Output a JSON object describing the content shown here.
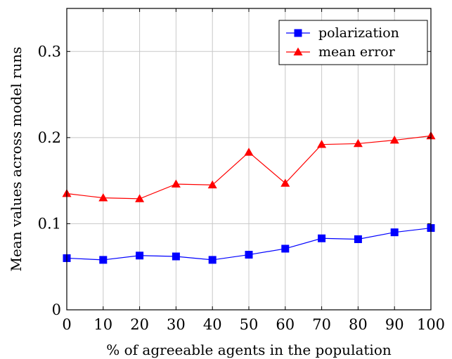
{
  "chart_data": {
    "type": "line",
    "title": "",
    "xlabel": "% of agreeable agents in the population",
    "ylabel": "Mean values across model runs",
    "x": [
      0,
      10,
      20,
      30,
      40,
      50,
      60,
      70,
      80,
      90,
      100
    ],
    "xlim": [
      0,
      100
    ],
    "ylim": [
      0,
      0.35
    ],
    "xticks": [
      0,
      10,
      20,
      30,
      40,
      50,
      60,
      70,
      80,
      90,
      100
    ],
    "xtick_labels": [
      "0",
      "10",
      "20",
      "30",
      "40",
      "50",
      "60",
      "70",
      "80",
      "90",
      "100"
    ],
    "yticks": [
      0,
      0.1,
      0.2,
      0.3
    ],
    "ytick_labels": [
      "0",
      "0.1",
      "0.2",
      "0.3"
    ],
    "grid": true,
    "legend_position": "top-right",
    "series": [
      {
        "name": "polarization",
        "color": "#0000ff",
        "marker": "square",
        "values": [
          0.06,
          0.058,
          0.063,
          0.062,
          0.058,
          0.064,
          0.071,
          0.083,
          0.082,
          0.09,
          0.095
        ]
      },
      {
        "name": "mean error",
        "color": "#ff0000",
        "marker": "triangle",
        "values": [
          0.135,
          0.13,
          0.129,
          0.146,
          0.145,
          0.183,
          0.147,
          0.192,
          0.193,
          0.197,
          0.202
        ]
      }
    ]
  }
}
